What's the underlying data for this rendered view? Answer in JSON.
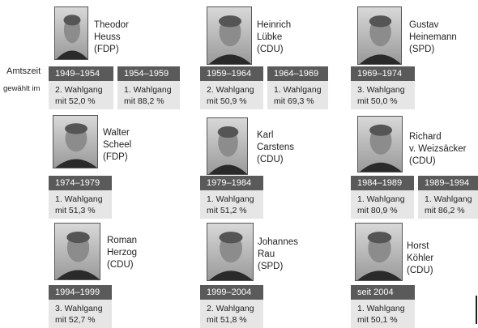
{
  "labels": {
    "term": "Amtszeit",
    "elected": "gewählt im"
  },
  "presidents": [
    {
      "name": [
        "Theodor",
        "Heuss"
      ],
      "party": "(FDP)",
      "terms": [
        {
          "period": "1949–1954",
          "round": "2. Wahlgang",
          "result": "mit 52,0 %"
        },
        {
          "period": "1954–1959",
          "round": "1. Wahlgang",
          "result": "mit 88,2 %"
        }
      ]
    },
    {
      "name": [
        "Heinrich",
        "Lübke"
      ],
      "party": "(CDU)",
      "terms": [
        {
          "period": "1959–1964",
          "round": "2. Wahlgang",
          "result": "mit 50,9 %"
        },
        {
          "period": "1964–1969",
          "round": "1. Wahlgang",
          "result": "mit 69,3 %"
        }
      ]
    },
    {
      "name": [
        "Gustav",
        "Heinemann"
      ],
      "party": "(SPD)",
      "terms": [
        {
          "period": "1969–1974",
          "round": "3. Wahlgang",
          "result": "mit 50,0 %"
        }
      ]
    },
    {
      "name": [
        "Walter",
        "Scheel"
      ],
      "party": "(FDP)",
      "terms": [
        {
          "period": "1974–1979",
          "round": "1. Wahlgang",
          "result": "mit 51,3 %"
        }
      ]
    },
    {
      "name": [
        "Karl",
        "Carstens"
      ],
      "party": "(CDU)",
      "terms": [
        {
          "period": "1979–1984",
          "round": "1. Wahlgang",
          "result": "mit 51,2 %"
        }
      ]
    },
    {
      "name": [
        "Richard",
        "v. Weizsäcker"
      ],
      "party": "(CDU)",
      "terms": [
        {
          "period": "1984–1989",
          "round": "1. Wahlgang",
          "result": "mit 80,9 %"
        },
        {
          "period": "1989–1994",
          "round": "1. Wahlgang",
          "result": "mit 86,2 %"
        }
      ]
    },
    {
      "name": [
        "Roman",
        "Herzog"
      ],
      "party": "(CDU)",
      "terms": [
        {
          "period": "1994–1999",
          "round": "3. Wahlgang",
          "result": "mit 52,7 %"
        }
      ]
    },
    {
      "name": [
        "Johannes",
        "Rau"
      ],
      "party": "(SPD)",
      "terms": [
        {
          "period": "1999–2004",
          "round": "2. Wahlgang",
          "result": "mit 51,8 %"
        }
      ]
    },
    {
      "name": [
        "Horst",
        "Köhler"
      ],
      "party": "(CDU)",
      "terms": [
        {
          "period": "seit 2004",
          "round": "1. Wahlgang",
          "result": "mit 50,1 %"
        }
      ]
    }
  ]
}
